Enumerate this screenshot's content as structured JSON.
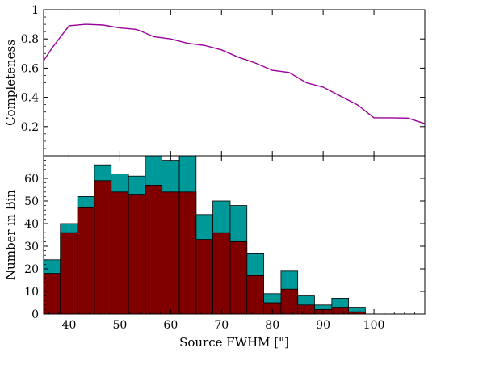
{
  "chart_data": [
    {
      "type": "line",
      "ylabel": "Completeness",
      "xlim": [
        35,
        110
      ],
      "ylim": [
        0,
        1
      ],
      "yticks": [
        0.2,
        0.4,
        0.6,
        0.8,
        1
      ],
      "ytick_labels": [
        "0.2",
        "0.4",
        "0.6",
        "0.8",
        "1"
      ],
      "grid": false,
      "colors": {
        "line": "#990099"
      },
      "series": [
        {
          "x": [
            35,
            36.7,
            40,
            43.3,
            46.7,
            50,
            53.3,
            56.7,
            60,
            63.3,
            66.7,
            70,
            73.3,
            76.7,
            80,
            83.3,
            86.7,
            90,
            93.3,
            96.7,
            100,
            103.3,
            106.7,
            110
          ],
          "values": [
            0.65,
            0.74,
            0.89,
            0.9,
            0.895,
            0.875,
            0.865,
            0.815,
            0.8,
            0.77,
            0.755,
            0.725,
            0.675,
            0.635,
            0.585,
            0.57,
            0.5,
            0.47,
            0.41,
            0.35,
            0.26,
            0.26,
            0.258,
            0.22
          ]
        }
      ]
    },
    {
      "type": "bar",
      "xlabel": "Source FWHM [\"]",
      "ylabel": "Number in Bin",
      "xlim": [
        35,
        110
      ],
      "ylim": [
        0,
        70
      ],
      "xticks": [
        40,
        50,
        60,
        70,
        80,
        90,
        100
      ],
      "xtick_labels": [
        "40",
        "50",
        "60",
        "70",
        "80",
        "90",
        "100"
      ],
      "yticks": [
        0,
        10,
        20,
        30,
        40,
        50,
        60
      ],
      "ytick_labels": [
        "0",
        "10",
        "20",
        "30",
        "40",
        "50",
        "60"
      ],
      "grid": false,
      "colors": {
        "all": "#009999",
        "detected": "#800000"
      },
      "bin_edges": [
        35,
        38.3,
        41.7,
        45,
        48.3,
        51.7,
        55,
        58.3,
        61.7,
        65,
        68.3,
        71.7,
        75,
        78.3,
        81.7,
        85,
        88.3,
        91.7,
        95,
        98.3
      ],
      "series": [
        {
          "values": [
            24,
            40,
            52,
            66,
            62,
            61,
            70,
            68,
            70,
            44,
            50,
            48,
            27,
            9,
            19,
            8,
            4,
            7,
            3
          ]
        },
        {
          "values": [
            18,
            36,
            47,
            59,
            54,
            53,
            57,
            54,
            54,
            33,
            36,
            32,
            17,
            5,
            11,
            4,
            2,
            3,
            1
          ]
        }
      ]
    }
  ]
}
